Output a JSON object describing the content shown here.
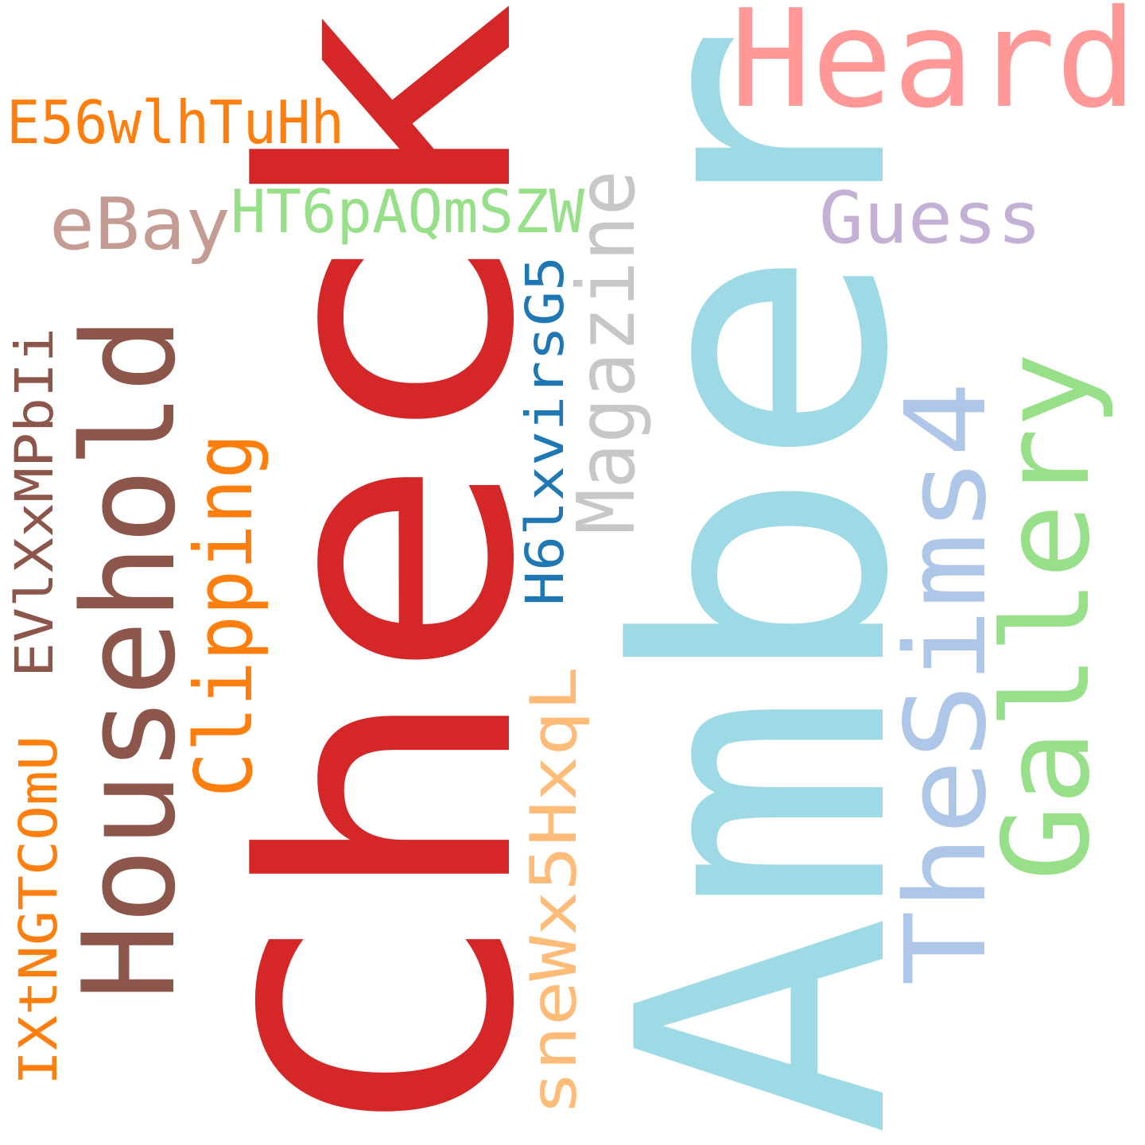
{
  "words": [
    {
      "text": "Check",
      "color": "#d62728",
      "rotated": true
    },
    {
      "text": "Amber",
      "color": "#9edae5",
      "rotated": true
    },
    {
      "text": "Heard",
      "color": "#ff9896",
      "rotated": false
    },
    {
      "text": "Household",
      "color": "#8c564b",
      "rotated": true
    },
    {
      "text": "TheSims4",
      "color": "#aec7e8",
      "rotated": true
    },
    {
      "text": "Gallery",
      "color": "#98df8a",
      "rotated": true
    },
    {
      "text": "Clipping",
      "color": "#ff7f0e",
      "rotated": true
    },
    {
      "text": "Magazine",
      "color": "#c7c7c7",
      "rotated": true
    },
    {
      "text": "eBay",
      "color": "#c49c94",
      "rotated": false
    },
    {
      "text": "Guess",
      "color": "#c5b0d5",
      "rotated": false
    },
    {
      "text": "E56wlhTuHh",
      "color": "#ff7f0e",
      "rotated": false
    },
    {
      "text": "HT6pAQmSZW",
      "color": "#98df8a",
      "rotated": false
    },
    {
      "text": "H6lxvirsG5",
      "color": "#1f77b4",
      "rotated": true
    },
    {
      "text": "sneWx5HxqL",
      "color": "#ffbb78",
      "rotated": true
    },
    {
      "text": "EVlXxMPbIi",
      "color": "#8c564b",
      "rotated": true
    },
    {
      "text": "IXtNGTCOmU",
      "color": "#ff7f0e",
      "rotated": true
    }
  ]
}
